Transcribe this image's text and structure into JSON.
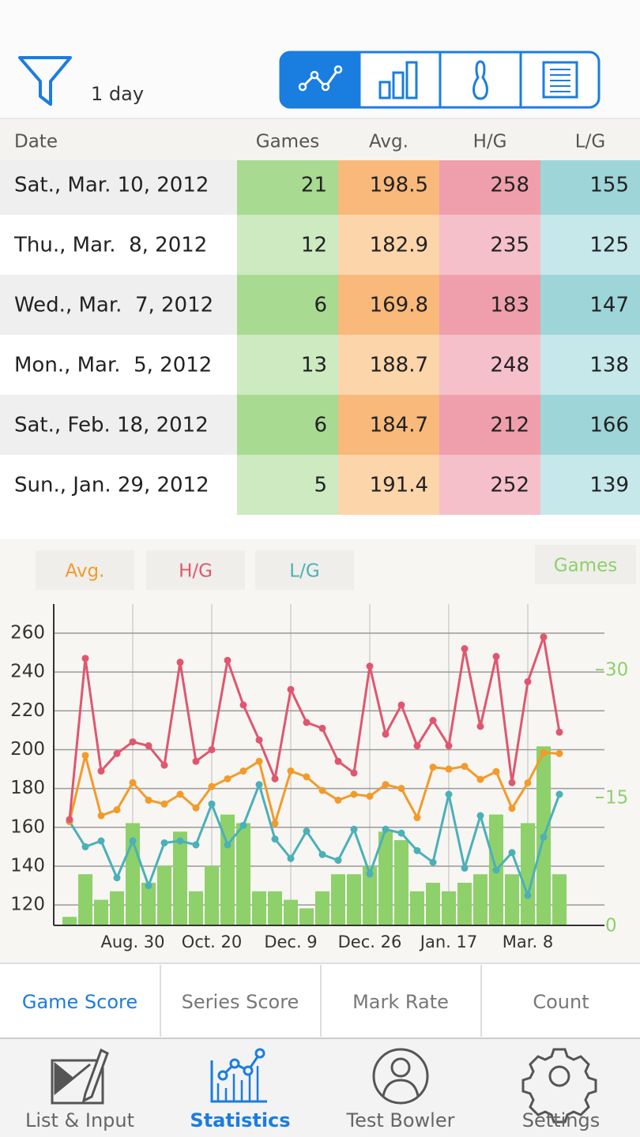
{
  "header": {
    "filter_label": "1 day"
  },
  "table": {
    "columns": [
      "Date",
      "Games",
      "Avg.",
      "H/G",
      "L/G"
    ],
    "rows": [
      [
        "Sat., Mar. 10, 2012",
        21,
        198.5,
        258,
        155
      ],
      [
        "Thu., Mar.  8, 2012",
        12,
        182.9,
        235,
        125
      ],
      [
        "Wed., Mar.  7, 2012",
        6,
        169.8,
        183,
        147
      ],
      [
        "Mon., Mar.  5, 2012",
        13,
        188.7,
        248,
        138
      ],
      [
        "Sat., Feb. 18, 2012",
        6,
        184.7,
        212,
        166
      ],
      [
        "Sun., Jan. 29, 2012",
        5,
        191.4,
        252,
        139
      ]
    ]
  },
  "chart_data": {
    "type": "line",
    "categories": [
      null,
      null,
      null,
      null,
      "Aug. 30",
      null,
      null,
      null,
      null,
      "Oct. 20",
      null,
      null,
      null,
      null,
      "Dec. 9",
      null,
      null,
      null,
      null,
      "Dec. 26",
      null,
      null,
      null,
      null,
      "Jan. 17",
      null,
      null,
      null,
      null,
      "Mar. 8",
      null,
      null
    ],
    "series": [
      {
        "name": "Avg.",
        "color": "#f39a2b",
        "values": [
          163,
          197,
          166,
          169,
          183,
          174,
          172,
          177,
          170,
          181,
          185,
          189,
          194,
          162,
          189,
          186,
          179,
          174,
          177,
          176,
          182,
          180,
          165,
          191,
          190,
          191.4,
          184.7,
          188.7,
          169.8,
          182.9,
          198.5,
          198
        ]
      },
      {
        "name": "H/G",
        "color": "#e0566e",
        "values": [
          164,
          247,
          189,
          198,
          204,
          202,
          192,
          245,
          194,
          200,
          246,
          223,
          205,
          185,
          231,
          214,
          211,
          194,
          188,
          243,
          208,
          223,
          202,
          215,
          202,
          252,
          212,
          248,
          183,
          235,
          258,
          209
        ]
      },
      {
        "name": "L/G",
        "color": "#4bb0b8",
        "values": [
          163,
          150,
          153,
          134,
          153,
          130,
          152,
          153,
          151,
          172,
          151,
          161,
          182,
          154,
          144,
          158,
          146,
          143,
          159,
          136,
          159,
          157,
          148,
          142,
          177,
          139,
          166,
          138,
          147,
          125,
          155,
          177
        ]
      },
      {
        "name": "Games",
        "color": "#8ed06a",
        "type": "bar",
        "axis": "y2",
        "values": [
          1,
          6,
          3,
          4,
          12,
          5,
          7,
          11,
          4,
          7,
          13,
          12,
          4,
          4,
          3,
          2,
          4,
          6,
          6,
          7,
          11,
          10,
          4,
          5,
          4,
          5,
          6,
          13,
          6,
          12,
          21,
          6
        ]
      }
    ],
    "ylim": [
      109.5,
      275
    ],
    "yticks": [
      120,
      140,
      160,
      180,
      200,
      220,
      240,
      260
    ],
    "y2lim": [
      0,
      37.7
    ],
    "y2ticks": [
      0,
      15,
      30
    ],
    "grid": true
  },
  "tabs": [
    "Game Score",
    "Series Score",
    "Mark Rate",
    "Count"
  ],
  "nav": [
    "List & Input",
    "Statistics",
    "Test Bowler",
    "Settings"
  ]
}
